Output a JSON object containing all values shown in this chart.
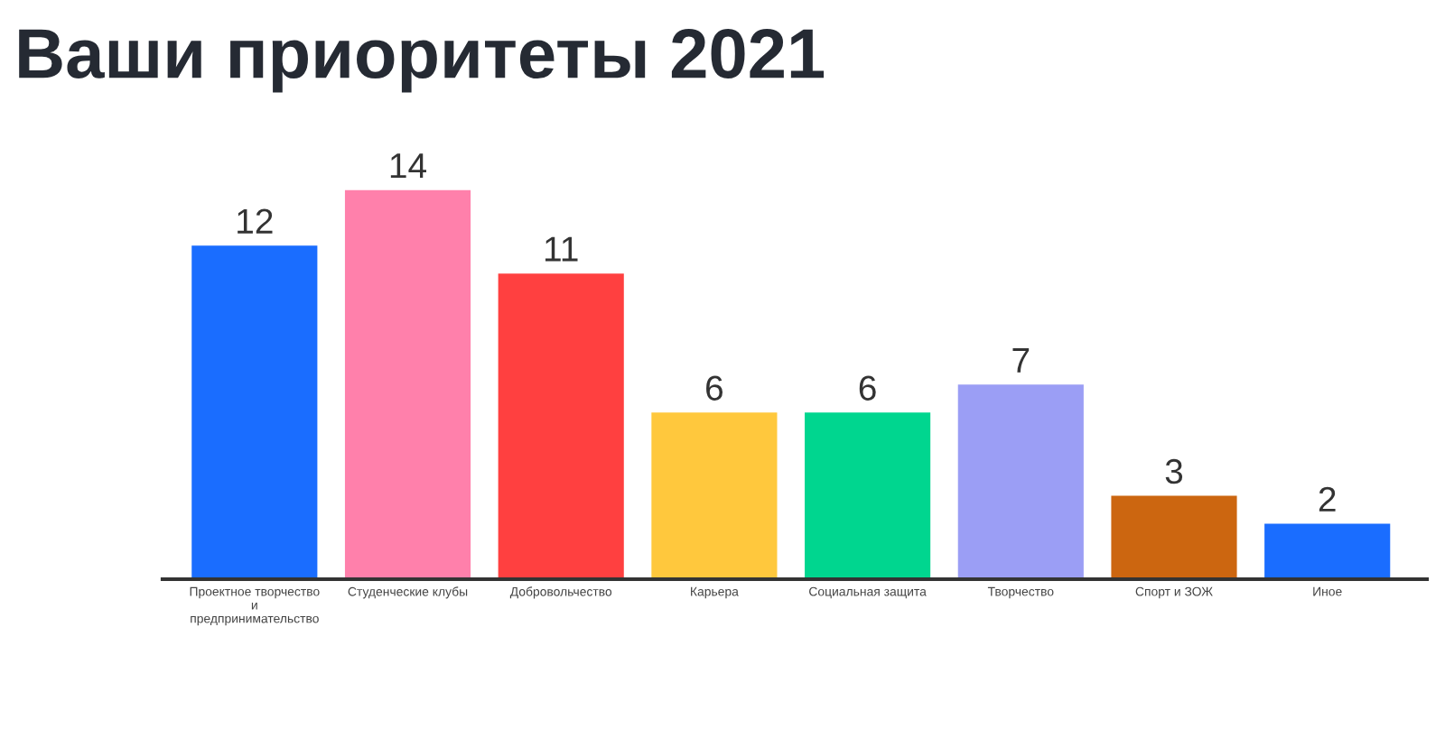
{
  "chart_data": {
    "type": "bar",
    "title": "Ваши приоритеты 2021",
    "categories": [
      "Проектное творчество\nи\nпредпринимательство",
      "Студенческие клубы",
      "Добровольчество",
      "Карьера",
      "Социальная защита",
      "Творчество",
      "Спорт и ЗОЖ",
      "Иное"
    ],
    "values": [
      12,
      14,
      11,
      6,
      6,
      7,
      3,
      2
    ],
    "colors": [
      "#1a6dff",
      "#ff80ab",
      "#ff4040",
      "#ffc83d",
      "#00d68f",
      "#9b9ef5",
      "#cc6610",
      "#1a6dff"
    ],
    "data_labels": true,
    "grid": false,
    "legend": false
  }
}
